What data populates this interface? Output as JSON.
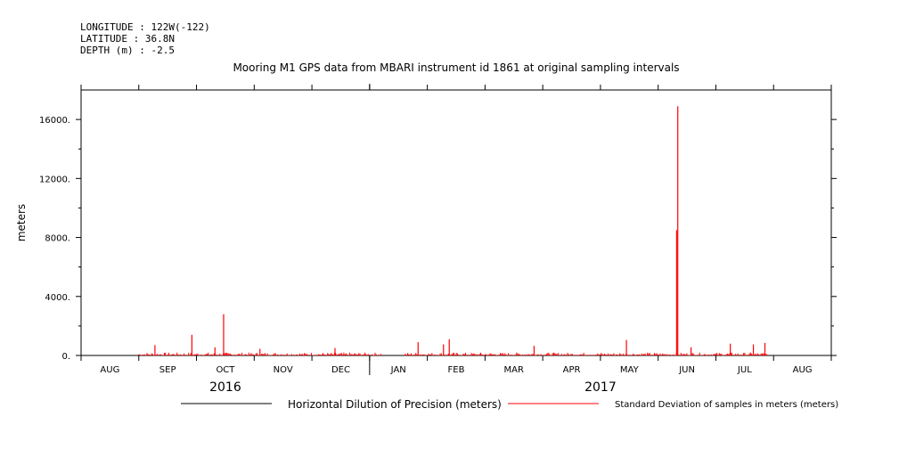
{
  "meta": {
    "longitude": "LONGITUDE : 122W(-122)",
    "latitude": "LATITUDE : 36.8N",
    "depth": "DEPTH (m) : -2.5"
  },
  "chart_data": {
    "type": "line",
    "title": "Mooring M1 GPS data from MBARI instrument id 1861 at original sampling intervals",
    "ylabel": "meters",
    "xlabel": "",
    "ylim": [
      0,
      18000
    ],
    "yticks": [
      {
        "value": 0,
        "label": "0."
      },
      {
        "value": 4000,
        "label": "4000."
      },
      {
        "value": 8000,
        "label": "8000."
      },
      {
        "value": 12000,
        "label": "12000."
      },
      {
        "value": 16000,
        "label": "16000."
      }
    ],
    "x_unit": "months since 2016-08-01",
    "xlim": [
      -0.5,
      12.5
    ],
    "month_labels": [
      {
        "label": "AUG",
        "x": 0
      },
      {
        "label": "SEP",
        "x": 1
      },
      {
        "label": "OCT",
        "x": 2
      },
      {
        "label": "NOV",
        "x": 3
      },
      {
        "label": "DEC",
        "x": 4
      },
      {
        "label": "JAN",
        "x": 5
      },
      {
        "label": "FEB",
        "x": 6
      },
      {
        "label": "MAR",
        "x": 7
      },
      {
        "label": "APR",
        "x": 8
      },
      {
        "label": "MAY",
        "x": 9
      },
      {
        "label": "JUN",
        "x": 10
      },
      {
        "label": "JUL",
        "x": 11
      },
      {
        "label": "AUG",
        "x": 12
      }
    ],
    "year_labels": [
      {
        "label": "2016",
        "x": 2
      },
      {
        "label": "2017",
        "x": 8.5
      }
    ],
    "year_boundary_x": 4.5,
    "series": [
      {
        "name": "Horizontal Dilution of Precision (meters)",
        "color": "#000000",
        "points": []
      },
      {
        "name": "Standard Deviation of samples in meters (meters)",
        "color": "#ff0000",
        "noise_ranges": [
          [
            0.5,
            4.7
          ],
          [
            5.1,
            11.4
          ]
        ],
        "baseline_max": 200,
        "spikes": [
          {
            "x": 0.78,
            "y": 700
          },
          {
            "x": 1.42,
            "y": 1400
          },
          {
            "x": 1.82,
            "y": 550
          },
          {
            "x": 1.97,
            "y": 2800
          },
          {
            "x": 2.6,
            "y": 450
          },
          {
            "x": 3.9,
            "y": 500
          },
          {
            "x": 5.34,
            "y": 900
          },
          {
            "x": 5.78,
            "y": 750
          },
          {
            "x": 5.88,
            "y": 1100
          },
          {
            "x": 7.35,
            "y": 650
          },
          {
            "x": 8.95,
            "y": 1050
          },
          {
            "x": 9.82,
            "y": 8500
          },
          {
            "x": 9.84,
            "y": 16900
          },
          {
            "x": 10.07,
            "y": 550
          },
          {
            "x": 10.75,
            "y": 800
          },
          {
            "x": 11.15,
            "y": 750
          },
          {
            "x": 11.35,
            "y": 850
          }
        ]
      }
    ]
  }
}
